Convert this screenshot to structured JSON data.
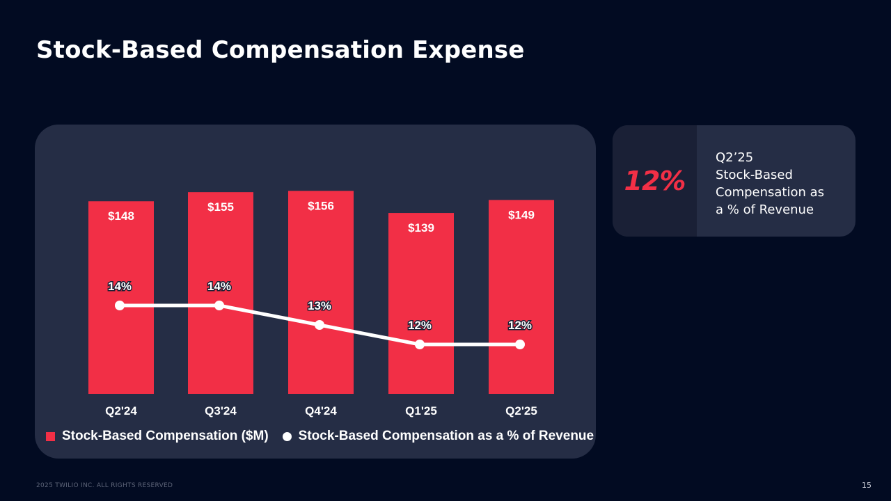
{
  "slide": {
    "title": "Stock-Based Compensation Expense",
    "footer": "2025 TWILIO INC. ALL RIGHTS RESERVED",
    "page_number": "15"
  },
  "kpi": {
    "value": "12%",
    "label_lines": [
      "Q2’25",
      "Stock-Based",
      "Compensation as",
      "a % of Revenue"
    ]
  },
  "colors": {
    "bar": "#f22f46",
    "line": "#ffffff",
    "panel": "#252d45",
    "background": "#020b22"
  },
  "chart_data": {
    "type": "bar",
    "categories": [
      "Q2'24",
      "Q3'24",
      "Q4'24",
      "Q1'25",
      "Q2'25"
    ],
    "series": [
      {
        "name": "Stock-Based Compensation ($M)",
        "type": "bar",
        "values": [
          148,
          155,
          156,
          139,
          149
        ],
        "labels": [
          "$148",
          "$155",
          "$156",
          "$139",
          "$149"
        ]
      },
      {
        "name": "Stock-Based Compensation as a % of Revenue",
        "type": "line",
        "values": [
          14,
          14,
          13,
          12,
          12
        ],
        "labels": [
          "14%",
          "14%",
          "13%",
          "12%",
          "12%"
        ]
      }
    ],
    "legend": [
      "Stock-Based Compensation ($M)",
      "Stock-Based Compensation as a % of Revenue"
    ],
    "legend_position": "bottom",
    "grid": false
  }
}
